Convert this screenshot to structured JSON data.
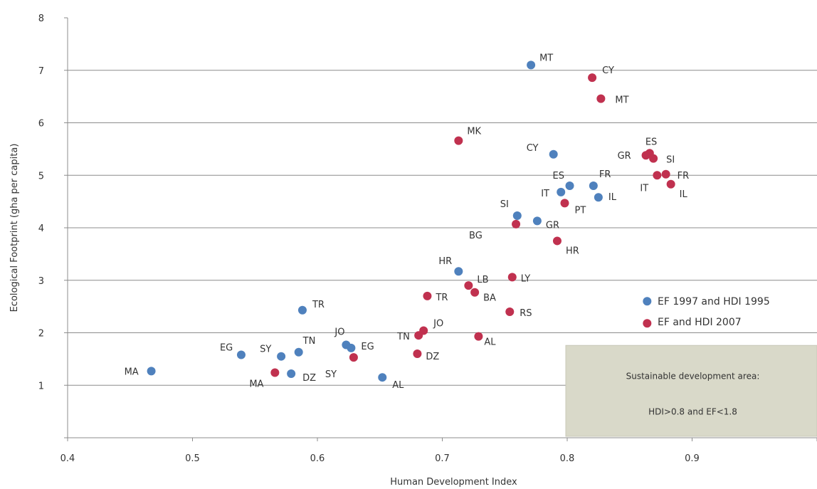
{
  "chart_data": {
    "type": "scatter",
    "xlabel": "Human Development Index",
    "ylabel": "Ecological Footprint (gha per capita)",
    "xlim": [
      0.4,
      1.0
    ],
    "ylim": [
      0,
      8
    ],
    "x_ticks": [
      "0.4",
      "0.5",
      "0.6",
      "0.7",
      "0.8",
      "0.9"
    ],
    "y_ticks": [
      "1",
      "2",
      "3",
      "4",
      "5",
      "6",
      "7",
      "8"
    ],
    "grid": "horizontal",
    "legend_position": "right",
    "series": [
      {
        "name": "EF 1997 and HDI 1995",
        "color": "#4f81bd",
        "points": [
          {
            "label": "MT",
            "x": 0.771,
            "y": 7.1
          },
          {
            "label": "CY",
            "x": 0.789,
            "y": 5.4
          },
          {
            "label": "ES",
            "x": 0.802,
            "y": 4.8
          },
          {
            "label": "FR",
            "x": 0.821,
            "y": 4.8
          },
          {
            "label": "IT",
            "x": 0.795,
            "y": 4.68
          },
          {
            "label": "IL",
            "x": 0.825,
            "y": 4.58
          },
          {
            "label": "SI",
            "x": 0.76,
            "y": 4.23
          },
          {
            "label": "GR",
            "x": 0.776,
            "y": 4.13
          },
          {
            "label": "HR",
            "x": 0.713,
            "y": 3.17
          },
          {
            "label": "TR",
            "x": 0.588,
            "y": 2.43
          },
          {
            "label": "JO",
            "x": 0.623,
            "y": 1.77
          },
          {
            "label": "EG",
            "x": 0.539,
            "y": 1.58
          },
          {
            "label": "SY",
            "x": 0.571,
            "y": 1.55
          },
          {
            "label": "TN",
            "x": 0.585,
            "y": 1.63
          },
          {
            "label": "EG",
            "x": 0.627,
            "y": 1.71
          },
          {
            "label": "MA",
            "x": 0.467,
            "y": 1.27
          },
          {
            "label": "DZ",
            "x": 0.579,
            "y": 1.22
          },
          {
            "label": "AL",
            "x": 0.652,
            "y": 1.15
          },
          {
            "label": "",
            "x": 0.864,
            "y": 2.6
          }
        ]
      },
      {
        "name": "EF and HDI 2007",
        "color": "#c0314f",
        "points": [
          {
            "label": "CY",
            "x": 0.82,
            "y": 6.86
          },
          {
            "label": "MT",
            "x": 0.827,
            "y": 6.46
          },
          {
            "label": "MK",
            "x": 0.713,
            "y": 5.66
          },
          {
            "label": "ES",
            "x": 0.866,
            "y": 5.42
          },
          {
            "label": "GR",
            "x": 0.863,
            "y": 5.38
          },
          {
            "label": "SI",
            "x": 0.869,
            "y": 5.32
          },
          {
            "label": "IT",
            "x": 0.872,
            "y": 5.0
          },
          {
            "label": "FR",
            "x": 0.879,
            "y": 5.02
          },
          {
            "label": "IL",
            "x": 0.883,
            "y": 4.83
          },
          {
            "label": "PT",
            "x": 0.798,
            "y": 4.47
          },
          {
            "label": "BG",
            "x": 0.759,
            "y": 4.07
          },
          {
            "label": "HR",
            "x": 0.792,
            "y": 3.75
          },
          {
            "label": "LB",
            "x": 0.721,
            "y": 2.9
          },
          {
            "label": "LY",
            "x": 0.756,
            "y": 3.06
          },
          {
            "label": "TR",
            "x": 0.688,
            "y": 2.7
          },
          {
            "label": "BA",
            "x": 0.726,
            "y": 2.77
          },
          {
            "label": "RS",
            "x": 0.754,
            "y": 2.4
          },
          {
            "label": "JO",
            "x": 0.685,
            "y": 2.04
          },
          {
            "label": "TN",
            "x": 0.681,
            "y": 1.95
          },
          {
            "label": "AL",
            "x": 0.729,
            "y": 1.93
          },
          {
            "label": "DZ",
            "x": 0.68,
            "y": 1.6
          },
          {
            "label": "SY",
            "x": 0.629,
            "y": 1.53
          },
          {
            "label": "MA",
            "x": 0.566,
            "y": 1.24
          },
          {
            "label": "",
            "x": 0.864,
            "y": 2.18
          }
        ]
      }
    ],
    "annotation": {
      "lines": [
        "Sustainable development area:",
        "HDI>0.8  and  EF<1.8"
      ],
      "x_range": [
        0.8,
        1.0
      ],
      "y_range": [
        0,
        1.8
      ]
    }
  }
}
